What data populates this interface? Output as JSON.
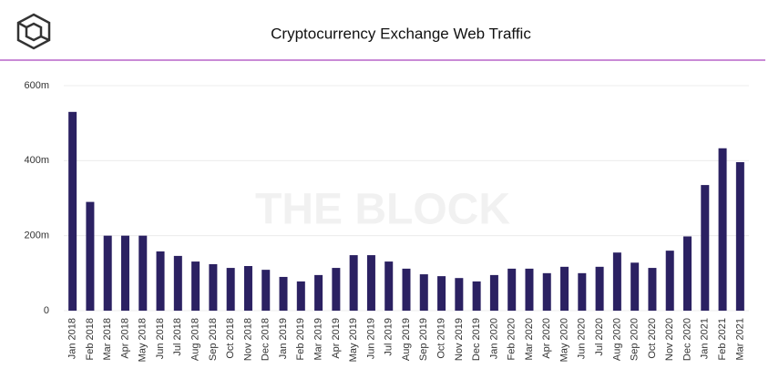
{
  "chart_data": {
    "type": "bar",
    "title": "Cryptocurrency Exchange Web Traffic",
    "watermark": "THE BLOCK",
    "categories": [
      "Jan 2018",
      "Feb 2018",
      "Mar 2018",
      "Apr 2018",
      "May 2018",
      "Jun 2018",
      "Jul 2018",
      "Aug 2018",
      "Sep 2018",
      "Oct 2018",
      "Nov 2018",
      "Dec 2018",
      "Jan 2019",
      "Feb 2019",
      "Mar 2019",
      "Apr 2019",
      "May 2019",
      "Jun 2019",
      "Jul 2019",
      "Aug 2019",
      "Sep 2019",
      "Oct 2019",
      "Nov 2019",
      "Dec 2019",
      "Jan 2020",
      "Feb 2020",
      "Mar 2020",
      "Apr 2020",
      "May 2020",
      "Jun 2020",
      "Jul 2020",
      "Aug 2020",
      "Sep 2020",
      "Oct 2020",
      "Nov 2020",
      "Dec 2020",
      "Jan 2021",
      "Feb 2021",
      "Mar 2021"
    ],
    "values": [
      530000000,
      290000000,
      200000000,
      200000000,
      200000000,
      158000000,
      146000000,
      131000000,
      124000000,
      114000000,
      119000000,
      109000000,
      90000000,
      78000000,
      95000000,
      114000000,
      148000000,
      148000000,
      131000000,
      112000000,
      97000000,
      92000000,
      87000000,
      78000000,
      95000000,
      112000000,
      112000000,
      100000000,
      117000000,
      100000000,
      117000000,
      155000000,
      128000000,
      114000000,
      160000000,
      198000000,
      335000000,
      433000000,
      396000000
    ],
    "color": "#2b2162",
    "ylim": [
      0,
      600000000
    ],
    "yticks": [
      0,
      {
        "value": 200000000,
        "label": "200m"
      },
      {
        "value": 400000000,
        "label": "400m"
      },
      {
        "value": 600000000,
        "label": "600m"
      }
    ],
    "grid": true
  }
}
